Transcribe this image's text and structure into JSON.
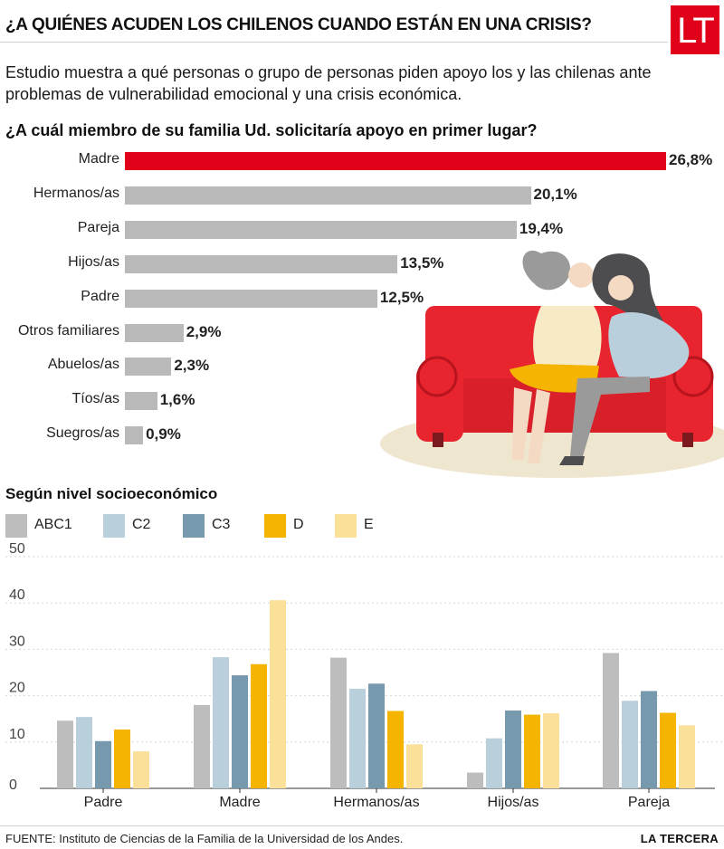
{
  "header": {
    "title": "¿A QUIÉNES ACUDEN LOS CHILENOS CUANDO ESTÁN EN UNA CRISIS?",
    "logo_text": "LT",
    "brand_color": "#e1001a"
  },
  "intro": "Estudio muestra a qué personas o grupo de personas piden apoyo los y las chilenas ante problemas de vulnerabilidad emocional y una crisis económica.",
  "chart_data": [
    {
      "type": "bar",
      "orientation": "horizontal",
      "title": "¿A cuál miembro de su familia Ud. solicitaría apoyo en primer lugar?",
      "categories": [
        "Madre",
        "Hermanos/as",
        "Pareja",
        "Hijos/as",
        "Padre",
        "Otros familiares",
        "Abuelos/as",
        "Tíos/as",
        "Suegros/as"
      ],
      "values": [
        26.8,
        20.1,
        19.4,
        13.5,
        12.5,
        2.9,
        2.3,
        1.6,
        0.9
      ],
      "value_labels": [
        "26,8%",
        "20,1%",
        "19,4%",
        "13,5%",
        "12,5%",
        "2,9%",
        "2,3%",
        "1,6%",
        "0,9%"
      ],
      "highlight_index": 0,
      "colors": {
        "bar": "#b9b9b9",
        "highlight": "#e1001a"
      },
      "xlim": [
        0,
        26.8
      ]
    },
    {
      "type": "bar",
      "orientation": "vertical",
      "title": "Según nivel socioeconómico",
      "categories": [
        "Padre",
        "Madre",
        "Hermanos/as",
        "Hijos/as",
        "Pareja"
      ],
      "series": [
        {
          "name": "ABC1",
          "color": "#bdbdbd",
          "values": [
            14.6,
            18.0,
            28.2,
            3.4,
            29.2
          ]
        },
        {
          "name": "C2",
          "color": "#b9cfdc",
          "values": [
            15.4,
            28.3,
            21.5,
            10.8,
            18.9
          ]
        },
        {
          "name": "C3",
          "color": "#7699ad",
          "values": [
            10.2,
            24.4,
            22.6,
            16.8,
            21.0
          ]
        },
        {
          "name": "D",
          "color": "#f5b400",
          "values": [
            12.7,
            26.8,
            16.7,
            15.9,
            16.3
          ]
        },
        {
          "name": "E",
          "color": "#fbe09a",
          "values": [
            8.0,
            40.6,
            9.5,
            16.2,
            13.6
          ]
        }
      ],
      "ylim": [
        0,
        50
      ],
      "yticks": [
        0,
        10,
        20,
        30,
        40,
        50
      ],
      "grid": true,
      "legend_position": "top-left"
    }
  ],
  "footer": {
    "source_label": "FUENTE:",
    "source_text": "Instituto de Ciencias de la Familia de la Universidad de los Andes.",
    "brand": "LA TERCERA"
  }
}
